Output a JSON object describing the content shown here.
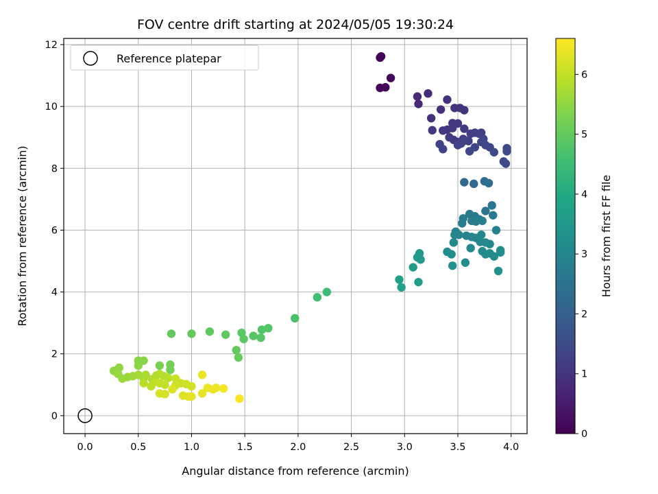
{
  "chart_data": {
    "type": "scatter",
    "title": "FOV centre drift starting at 2024/05/05 19:30:24",
    "xlabel": "Angular distance from reference (arcmin)",
    "ylabel": "Rotation from reference (arcmin)",
    "xlim": [
      -0.2,
      4.15
    ],
    "ylim": [
      -0.58,
      12.2
    ],
    "x_ticks": [
      0.0,
      0.5,
      1.0,
      1.5,
      2.0,
      2.5,
      3.0,
      3.5,
      4.0
    ],
    "x_tick_labels": [
      "0.0",
      "0.5",
      "1.0",
      "1.5",
      "2.0",
      "2.5",
      "3.0",
      "3.5",
      "4.0"
    ],
    "y_ticks": [
      0,
      2,
      4,
      6,
      8,
      10,
      12
    ],
    "y_tick_labels": [
      "0",
      "2",
      "4",
      "6",
      "8",
      "10",
      "12"
    ],
    "grid": true,
    "legend_position": "top-left",
    "reference_marker": {
      "label": "Reference platepar",
      "x": 0.0,
      "y": 0.0
    },
    "colorbar": {
      "label": "Hours from first FF file",
      "colormap": "viridis",
      "range": [
        0,
        6.6
      ],
      "ticks": [
        0,
        1,
        2,
        3,
        4,
        5,
        6
      ],
      "tick_labels": [
        "0",
        "1",
        "2",
        "3",
        "4",
        "5",
        "6"
      ]
    },
    "points": [
      {
        "x": 2.77,
        "y": 11.58,
        "h": 0.05
      },
      {
        "x": 2.78,
        "y": 11.62,
        "h": 0.05
      },
      {
        "x": 2.77,
        "y": 10.6,
        "h": 0.08
      },
      {
        "x": 2.82,
        "y": 10.62,
        "h": 0.1
      },
      {
        "x": 2.87,
        "y": 10.92,
        "h": 0.12
      },
      {
        "x": 3.12,
        "y": 10.32,
        "h": 0.8
      },
      {
        "x": 3.13,
        "y": 10.08,
        "h": 0.8
      },
      {
        "x": 3.22,
        "y": 10.42,
        "h": 0.85
      },
      {
        "x": 3.25,
        "y": 9.62,
        "h": 0.9
      },
      {
        "x": 3.34,
        "y": 9.9,
        "h": 0.9
      },
      {
        "x": 3.4,
        "y": 10.22,
        "h": 0.95
      },
      {
        "x": 3.47,
        "y": 9.95,
        "h": 1.0
      },
      {
        "x": 3.52,
        "y": 9.95,
        "h": 1.0
      },
      {
        "x": 3.56,
        "y": 9.88,
        "h": 1.0
      },
      {
        "x": 3.45,
        "y": 9.46,
        "h": 1.05
      },
      {
        "x": 3.5,
        "y": 9.45,
        "h": 1.05
      },
      {
        "x": 3.26,
        "y": 9.23,
        "h": 1.1
      },
      {
        "x": 3.36,
        "y": 9.22,
        "h": 1.1
      },
      {
        "x": 3.4,
        "y": 9.25,
        "h": 1.1
      },
      {
        "x": 3.45,
        "y": 9.3,
        "h": 1.1
      },
      {
        "x": 3.56,
        "y": 9.28,
        "h": 1.12
      },
      {
        "x": 3.42,
        "y": 9.0,
        "h": 1.15
      },
      {
        "x": 3.46,
        "y": 8.92,
        "h": 1.15
      },
      {
        "x": 3.5,
        "y": 8.85,
        "h": 1.15
      },
      {
        "x": 3.55,
        "y": 8.95,
        "h": 1.2
      },
      {
        "x": 3.6,
        "y": 8.88,
        "h": 1.2
      },
      {
        "x": 3.62,
        "y": 9.12,
        "h": 1.2
      },
      {
        "x": 3.66,
        "y": 9.15,
        "h": 1.2
      },
      {
        "x": 3.7,
        "y": 9.12,
        "h": 1.25
      },
      {
        "x": 3.72,
        "y": 9.15,
        "h": 1.25
      },
      {
        "x": 3.33,
        "y": 8.78,
        "h": 1.3
      },
      {
        "x": 3.36,
        "y": 8.62,
        "h": 1.3
      },
      {
        "x": 3.5,
        "y": 8.75,
        "h": 1.3
      },
      {
        "x": 3.53,
        "y": 8.8,
        "h": 1.3
      },
      {
        "x": 3.57,
        "y": 8.9,
        "h": 1.3
      },
      {
        "x": 3.61,
        "y": 8.55,
        "h": 1.35
      },
      {
        "x": 3.66,
        "y": 8.68,
        "h": 1.35
      },
      {
        "x": 3.72,
        "y": 8.85,
        "h": 1.35
      },
      {
        "x": 3.74,
        "y": 8.95,
        "h": 1.4
      },
      {
        "x": 3.76,
        "y": 8.75,
        "h": 1.4
      },
      {
        "x": 3.8,
        "y": 8.68,
        "h": 1.4
      },
      {
        "x": 3.84,
        "y": 8.52,
        "h": 1.45
      },
      {
        "x": 3.93,
        "y": 8.22,
        "h": 1.45
      },
      {
        "x": 3.96,
        "y": 8.65,
        "h": 1.5
      },
      {
        "x": 3.96,
        "y": 8.55,
        "h": 1.5
      },
      {
        "x": 3.95,
        "y": 8.15,
        "h": 1.5
      },
      {
        "x": 3.56,
        "y": 7.55,
        "h": 2.3
      },
      {
        "x": 3.65,
        "y": 7.5,
        "h": 2.3
      },
      {
        "x": 3.75,
        "y": 7.58,
        "h": 2.35
      },
      {
        "x": 3.79,
        "y": 7.52,
        "h": 2.35
      },
      {
        "x": 3.82,
        "y": 6.8,
        "h": 2.6
      },
      {
        "x": 3.76,
        "y": 6.62,
        "h": 2.6
      },
      {
        "x": 3.83,
        "y": 6.48,
        "h": 2.65
      },
      {
        "x": 3.61,
        "y": 6.52,
        "h": 2.7
      },
      {
        "x": 3.66,
        "y": 6.45,
        "h": 2.7
      },
      {
        "x": 3.7,
        "y": 6.35,
        "h": 2.75
      },
      {
        "x": 3.55,
        "y": 6.38,
        "h": 2.75
      },
      {
        "x": 3.54,
        "y": 6.22,
        "h": 2.8
      },
      {
        "x": 3.63,
        "y": 6.3,
        "h": 2.8
      },
      {
        "x": 3.67,
        "y": 6.28,
        "h": 2.8
      },
      {
        "x": 3.73,
        "y": 6.3,
        "h": 2.85
      },
      {
        "x": 3.48,
        "y": 5.95,
        "h": 2.85
      },
      {
        "x": 3.86,
        "y": 6.0,
        "h": 2.9
      },
      {
        "x": 3.58,
        "y": 5.82,
        "h": 2.9
      },
      {
        "x": 3.63,
        "y": 5.78,
        "h": 2.95
      },
      {
        "x": 3.67,
        "y": 5.75,
        "h": 2.95
      },
      {
        "x": 3.72,
        "y": 5.85,
        "h": 3.0
      },
      {
        "x": 3.47,
        "y": 5.85,
        "h": 3.0
      },
      {
        "x": 3.51,
        "y": 5.85,
        "h": 3.0
      },
      {
        "x": 3.71,
        "y": 5.62,
        "h": 3.05
      },
      {
        "x": 3.76,
        "y": 5.6,
        "h": 3.05
      },
      {
        "x": 3.8,
        "y": 5.55,
        "h": 3.05
      },
      {
        "x": 3.46,
        "y": 5.6,
        "h": 3.1
      },
      {
        "x": 3.62,
        "y": 5.42,
        "h": 3.1
      },
      {
        "x": 3.73,
        "y": 5.32,
        "h": 3.1
      },
      {
        "x": 3.76,
        "y": 5.22,
        "h": 3.15
      },
      {
        "x": 3.8,
        "y": 5.25,
        "h": 3.15
      },
      {
        "x": 3.84,
        "y": 5.15,
        "h": 3.15
      },
      {
        "x": 3.9,
        "y": 5.35,
        "h": 3.2
      },
      {
        "x": 3.9,
        "y": 5.28,
        "h": 3.2
      },
      {
        "x": 3.4,
        "y": 5.3,
        "h": 3.2
      },
      {
        "x": 3.44,
        "y": 5.22,
        "h": 3.25
      },
      {
        "x": 3.57,
        "y": 4.95,
        "h": 3.25
      },
      {
        "x": 3.45,
        "y": 4.85,
        "h": 3.3
      },
      {
        "x": 3.88,
        "y": 4.68,
        "h": 3.3
      },
      {
        "x": 3.14,
        "y": 5.25,
        "h": 3.5
      },
      {
        "x": 3.12,
        "y": 5.12,
        "h": 3.5
      },
      {
        "x": 3.15,
        "y": 5.05,
        "h": 3.55
      },
      {
        "x": 3.08,
        "y": 4.8,
        "h": 3.6
      },
      {
        "x": 3.13,
        "y": 4.32,
        "h": 3.65
      },
      {
        "x": 2.95,
        "y": 4.4,
        "h": 3.7
      },
      {
        "x": 2.97,
        "y": 4.15,
        "h": 3.75
      },
      {
        "x": 2.27,
        "y": 4.0,
        "h": 4.5
      },
      {
        "x": 2.18,
        "y": 3.83,
        "h": 4.55
      },
      {
        "x": 1.97,
        "y": 3.15,
        "h": 4.7
      },
      {
        "x": 1.72,
        "y": 2.83,
        "h": 4.8
      },
      {
        "x": 1.66,
        "y": 2.78,
        "h": 4.8
      },
      {
        "x": 1.58,
        "y": 2.58,
        "h": 4.85
      },
      {
        "x": 1.65,
        "y": 2.52,
        "h": 4.85
      },
      {
        "x": 1.47,
        "y": 2.68,
        "h": 4.9
      },
      {
        "x": 1.49,
        "y": 2.48,
        "h": 4.9
      },
      {
        "x": 1.32,
        "y": 2.62,
        "h": 4.95
      },
      {
        "x": 1.17,
        "y": 2.72,
        "h": 4.95
      },
      {
        "x": 1.0,
        "y": 2.65,
        "h": 5.0
      },
      {
        "x": 0.81,
        "y": 2.65,
        "h": 5.0
      },
      {
        "x": 1.42,
        "y": 2.12,
        "h": 5.0
      },
      {
        "x": 1.44,
        "y": 1.88,
        "h": 5.05
      },
      {
        "x": 0.8,
        "y": 1.65,
        "h": 5.2
      },
      {
        "x": 0.8,
        "y": 1.48,
        "h": 5.2
      },
      {
        "x": 0.7,
        "y": 1.62,
        "h": 5.25
      },
      {
        "x": 0.5,
        "y": 1.78,
        "h": 5.4
      },
      {
        "x": 0.55,
        "y": 1.78,
        "h": 5.4
      },
      {
        "x": 0.5,
        "y": 1.62,
        "h": 5.45
      },
      {
        "x": 0.27,
        "y": 1.45,
        "h": 5.5
      },
      {
        "x": 0.32,
        "y": 1.55,
        "h": 5.5
      },
      {
        "x": 0.31,
        "y": 1.35,
        "h": 5.55
      },
      {
        "x": 0.35,
        "y": 1.2,
        "h": 5.6
      },
      {
        "x": 0.4,
        "y": 1.25,
        "h": 5.6
      },
      {
        "x": 0.45,
        "y": 1.28,
        "h": 5.65
      },
      {
        "x": 0.5,
        "y": 1.32,
        "h": 5.7
      },
      {
        "x": 0.55,
        "y": 1.2,
        "h": 5.7
      },
      {
        "x": 0.57,
        "y": 1.32,
        "h": 5.75
      },
      {
        "x": 0.63,
        "y": 1.18,
        "h": 5.8
      },
      {
        "x": 0.67,
        "y": 1.3,
        "h": 5.8
      },
      {
        "x": 0.7,
        "y": 1.35,
        "h": 5.85
      },
      {
        "x": 0.74,
        "y": 1.28,
        "h": 5.85
      },
      {
        "x": 0.78,
        "y": 1.22,
        "h": 5.9
      },
      {
        "x": 0.55,
        "y": 1.05,
        "h": 5.9
      },
      {
        "x": 0.62,
        "y": 0.95,
        "h": 5.95
      },
      {
        "x": 0.66,
        "y": 1.1,
        "h": 5.95
      },
      {
        "x": 0.7,
        "y": 1.05,
        "h": 6.0
      },
      {
        "x": 0.75,
        "y": 1.0,
        "h": 6.0
      },
      {
        "x": 0.85,
        "y": 1.2,
        "h": 6.05
      },
      {
        "x": 0.9,
        "y": 1.05,
        "h": 6.05
      },
      {
        "x": 0.85,
        "y": 0.98,
        "h": 6.1
      },
      {
        "x": 0.95,
        "y": 1.02,
        "h": 6.1
      },
      {
        "x": 1.0,
        "y": 0.95,
        "h": 6.15
      },
      {
        "x": 0.7,
        "y": 0.72,
        "h": 6.2
      },
      {
        "x": 0.75,
        "y": 0.7,
        "h": 6.2
      },
      {
        "x": 0.82,
        "y": 0.85,
        "h": 6.25
      },
      {
        "x": 0.92,
        "y": 0.65,
        "h": 6.3
      },
      {
        "x": 0.97,
        "y": 0.62,
        "h": 6.3
      },
      {
        "x": 1.0,
        "y": 0.62,
        "h": 6.35
      },
      {
        "x": 1.1,
        "y": 0.72,
        "h": 6.35
      },
      {
        "x": 1.15,
        "y": 0.9,
        "h": 6.4
      },
      {
        "x": 1.1,
        "y": 1.32,
        "h": 6.4
      },
      {
        "x": 1.2,
        "y": 0.85,
        "h": 6.45
      },
      {
        "x": 1.23,
        "y": 0.9,
        "h": 6.45
      },
      {
        "x": 1.3,
        "y": 0.88,
        "h": 6.5
      },
      {
        "x": 1.45,
        "y": 0.55,
        "h": 6.55
      }
    ]
  }
}
